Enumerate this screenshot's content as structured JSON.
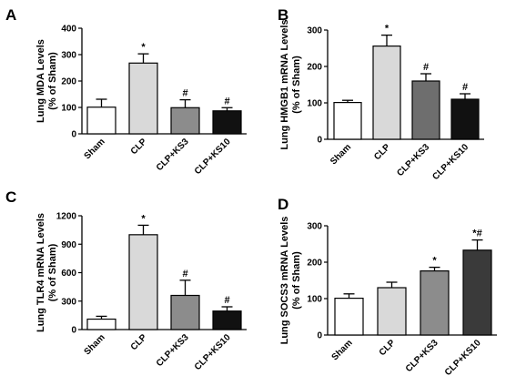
{
  "chart_data": [
    {
      "type": "bar",
      "panel": "A",
      "ylabel_lines": [
        "Lung MDA Levels",
        "(% of Sham)"
      ],
      "categories": [
        "Sham",
        "CLP",
        "CLP+KS3",
        "CLP+KS10"
      ],
      "values": [
        101,
        268,
        99,
        87
      ],
      "errors": [
        30,
        35,
        30,
        12
      ],
      "annotations": [
        "",
        "*",
        "#",
        "#"
      ],
      "colors": [
        "#ffffff",
        "#d9d9d9",
        "#8c8c8c",
        "#111111"
      ],
      "ylim": [
        0,
        400
      ],
      "yticks": [
        0,
        100,
        200,
        300,
        400
      ],
      "ytick_labels": [
        "0",
        "100",
        "200",
        "300",
        "400"
      ]
    },
    {
      "type": "bar",
      "panel": "B",
      "ylabel_lines": [
        "Lung HMGB1 mRNA Levels",
        "(% of Sham)"
      ],
      "categories": [
        "Sham",
        "CLP",
        "CLP+KS3",
        "CLP+KS10"
      ],
      "values": [
        101,
        256,
        160,
        110
      ],
      "errors": [
        6,
        30,
        20,
        15
      ],
      "annotations": [
        "",
        "*",
        "#",
        "#"
      ],
      "colors": [
        "#ffffff",
        "#d9d9d9",
        "#6e6e6e",
        "#111111"
      ],
      "ylim": [
        0,
        300
      ],
      "yticks": [
        0,
        100,
        200,
        300
      ],
      "ytick_labels": [
        "0",
        "100",
        "200",
        "300"
      ]
    },
    {
      "type": "bar",
      "panel": "C",
      "ylabel_lines": [
        "Lung TLR4 mRNA Levels",
        "(% of Sham)"
      ],
      "categories": [
        "Sham",
        "CLP",
        "CLP+KS3",
        "CLP+KS10"
      ],
      "values": [
        110,
        1000,
        360,
        195
      ],
      "errors": [
        30,
        100,
        160,
        45
      ],
      "annotations": [
        "",
        "*",
        "#",
        "#"
      ],
      "colors": [
        "#ffffff",
        "#d9d9d9",
        "#8c8c8c",
        "#111111"
      ],
      "ylim": [
        0,
        1200
      ],
      "yticks": [
        0,
        300,
        600,
        900,
        1200
      ],
      "ytick_labels": [
        "0",
        "300",
        "600",
        "900",
        "1200"
      ]
    },
    {
      "type": "bar",
      "panel": "D",
      "ylabel_lines": [
        "Lung SOCS3 mRNA Levels",
        "(% of Sham)"
      ],
      "categories": [
        "Sham",
        "CLP",
        "CLP+KS3",
        "CLP+KS10"
      ],
      "values": [
        101,
        130,
        176,
        233
      ],
      "errors": [
        12,
        15,
        10,
        28
      ],
      "annotations": [
        "",
        "",
        "*",
        "*#"
      ],
      "colors": [
        "#ffffff",
        "#d9d9d9",
        "#8c8c8c",
        "#3a3a3a"
      ],
      "ylim": [
        0,
        300
      ],
      "yticks": [
        0,
        100,
        200,
        300
      ],
      "ytick_labels": [
        "0",
        "100",
        "200",
        "300"
      ]
    }
  ]
}
